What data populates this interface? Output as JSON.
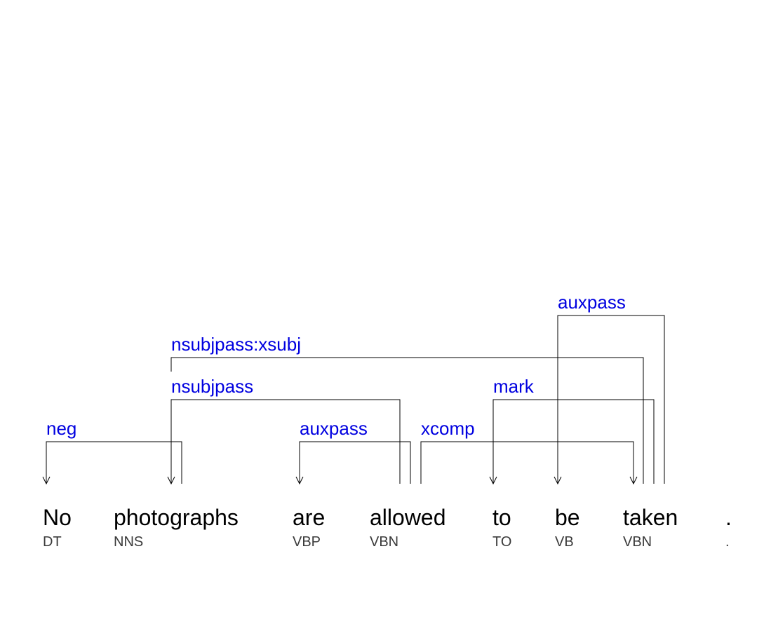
{
  "tokens": [
    {
      "word": "No",
      "tag": "DT"
    },
    {
      "word": "photographs",
      "tag": "NNS"
    },
    {
      "word": "are",
      "tag": "VBP"
    },
    {
      "word": "allowed",
      "tag": "VBN"
    },
    {
      "word": "to",
      "tag": "TO"
    },
    {
      "word": "be",
      "tag": "VB"
    },
    {
      "word": "taken",
      "tag": "VBN"
    },
    {
      "word": ".",
      "tag": "."
    }
  ],
  "relations": [
    {
      "label": "neg",
      "head": 1,
      "dep": 0
    },
    {
      "label": "auxpass",
      "head": 3,
      "dep": 2
    },
    {
      "label": "xcomp",
      "head": 3,
      "dep": 6
    },
    {
      "label": "nsubjpass",
      "head": 3,
      "dep": 1
    },
    {
      "label": "mark",
      "head": 6,
      "dep": 4
    },
    {
      "label": "nsubjpass:xsubj",
      "head": 6,
      "dep": 1
    },
    {
      "label": "auxpass",
      "head": 6,
      "dep": 5
    }
  ]
}
